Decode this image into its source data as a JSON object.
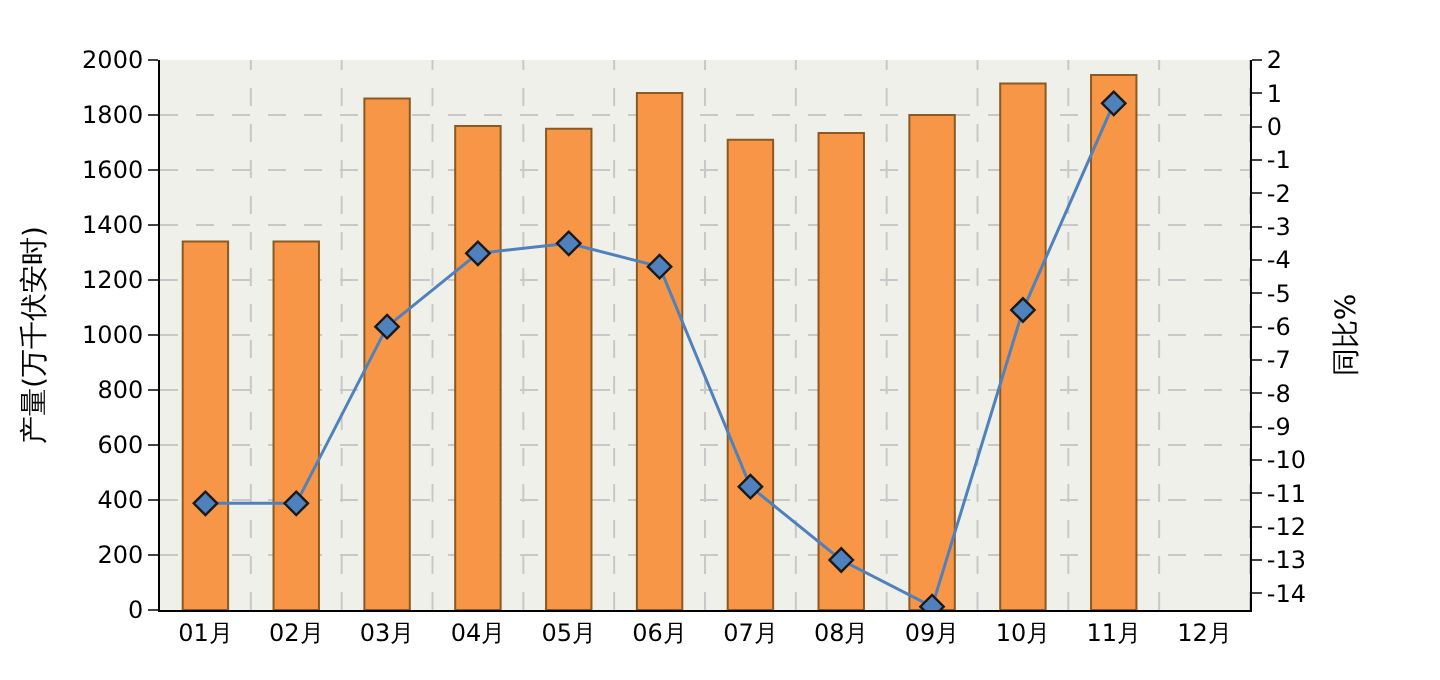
{
  "chart_data": {
    "type": "bar",
    "ylabel": "产量(万千伏安时)",
    "y2label": "同比%",
    "categories": [
      "01月",
      "02月",
      "03月",
      "04月",
      "05月",
      "06月",
      "07月",
      "08月",
      "09月",
      "10月",
      "11月",
      "12月"
    ],
    "series": [
      {
        "color": "#f79646",
        "values": [
          1340,
          1340,
          1860,
          1760,
          1750,
          1880,
          1710,
          1735,
          1800,
          1915,
          1945,
          null
        ]
      },
      {
        "type": "line",
        "axis": "y2",
        "color": "#4f81bd",
        "marker": "diamond",
        "values": [
          -11.3,
          -11.3,
          -6.0,
          -3.8,
          -3.5,
          -4.2,
          -10.8,
          -13.0,
          -14.4,
          -5.5,
          0.7,
          null
        ]
      }
    ],
    "ylim": [
      0,
      2000
    ],
    "yticks": [
      0,
      200,
      400,
      600,
      800,
      1000,
      1200,
      1400,
      1600,
      1800,
      2000
    ],
    "y2lim": [
      -14.5,
      2
    ],
    "y2ticks": [
      -14,
      -13,
      -12,
      -11,
      -10,
      -9,
      -8,
      -7,
      -6,
      -5,
      -4,
      -3,
      -2,
      -1,
      0,
      1,
      2
    ],
    "grid": true
  }
}
